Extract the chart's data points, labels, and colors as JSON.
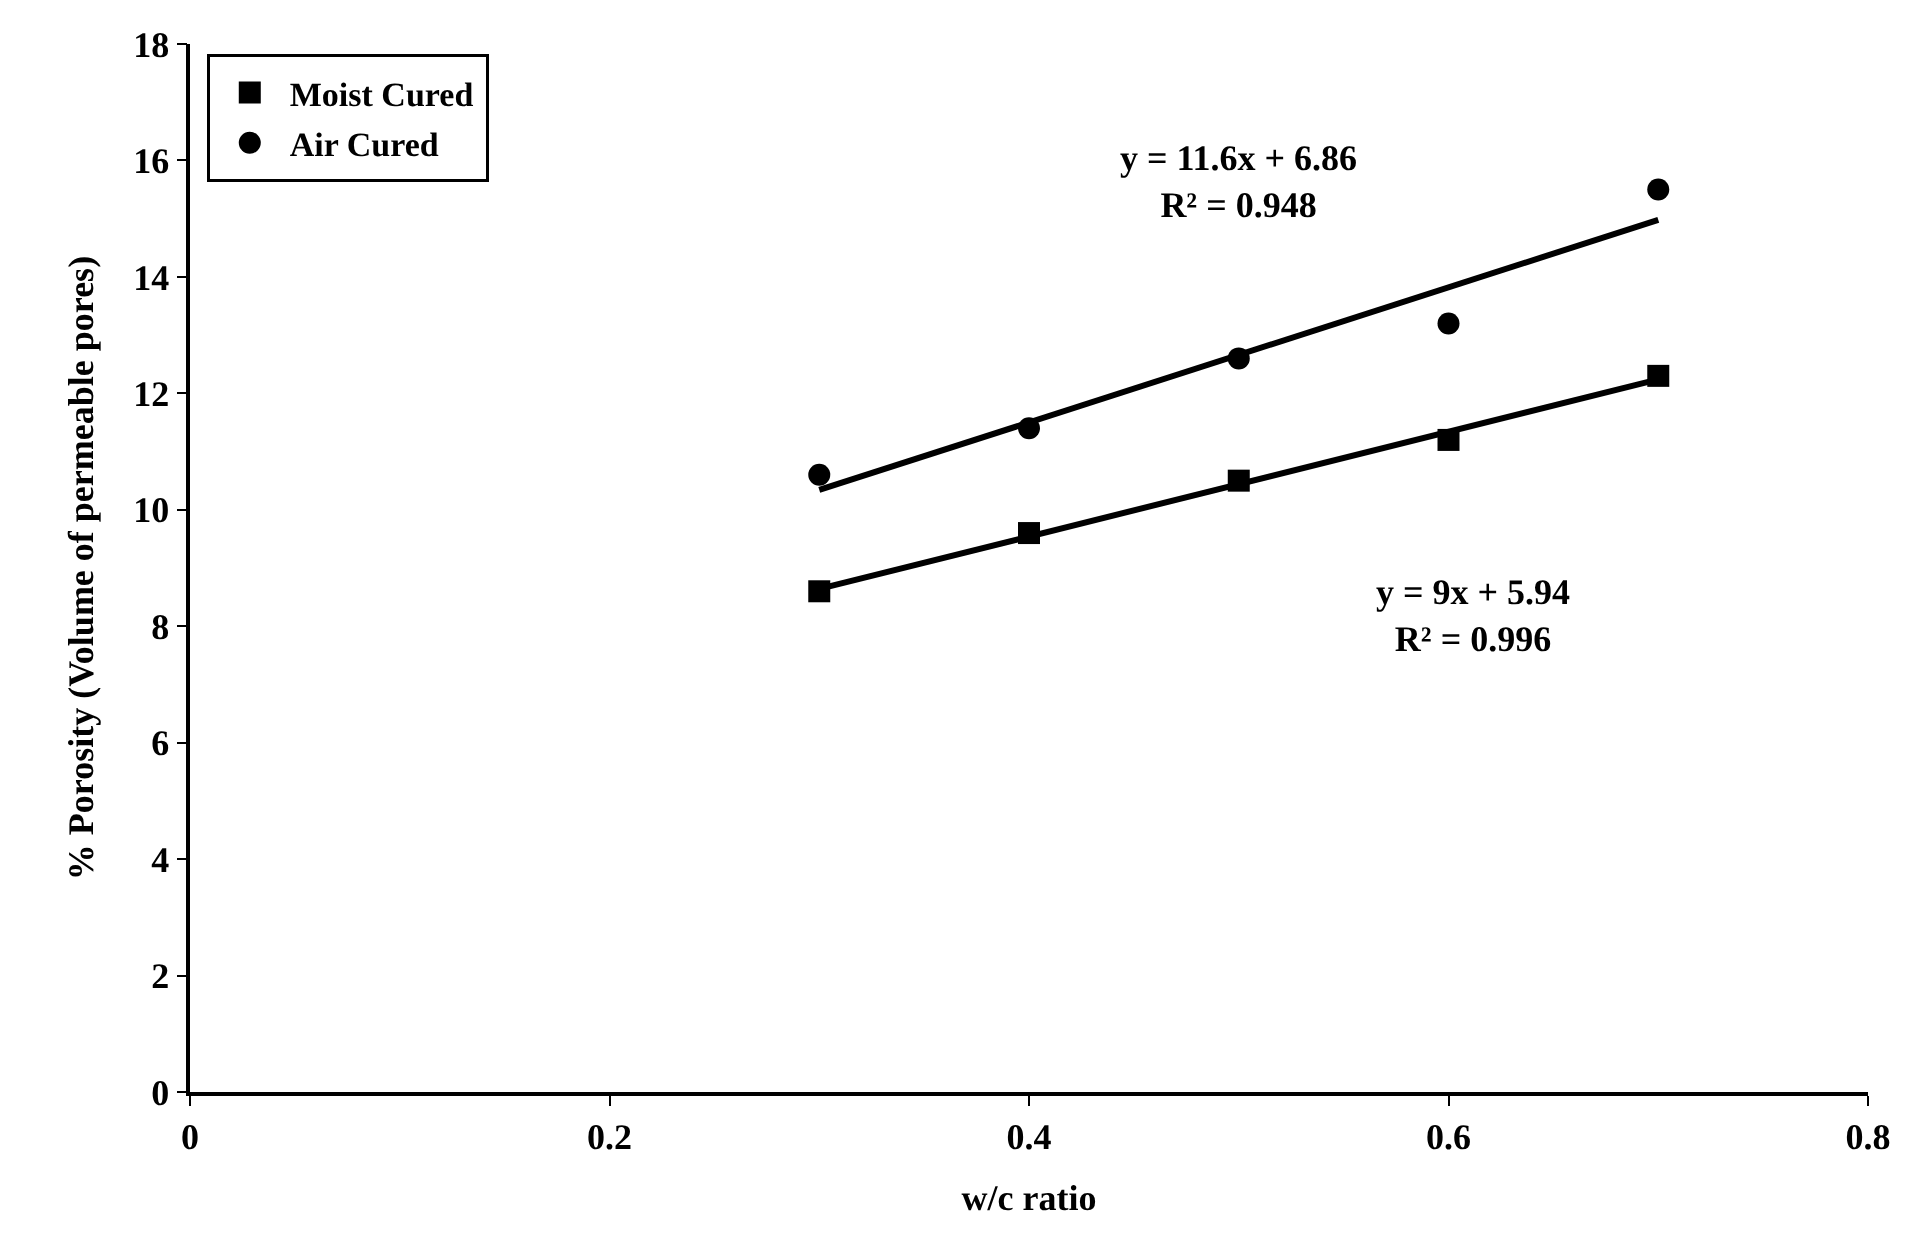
{
  "chart_data": {
    "type": "scatter",
    "xlabel": "w/c ratio",
    "ylabel": "% Porosity (Volume of permeable pores)",
    "xlim": [
      0,
      0.8
    ],
    "xticks": [
      0,
      0.2,
      0.4,
      0.6,
      0.8
    ],
    "ylim": [
      0,
      18
    ],
    "yticks": [
      0,
      2,
      4,
      6,
      8,
      10,
      12,
      14,
      16,
      18
    ],
    "legend": "top left",
    "series": [
      {
        "name": "Moist Cured",
        "color": "#000000",
        "marker": "square",
        "x": [
          0.3,
          0.4,
          0.5,
          0.6,
          0.7
        ],
        "values": [
          8.6,
          9.6,
          10.5,
          11.2,
          12.3
        ]
      },
      {
        "name": "Air Cured",
        "color": "#000000",
        "marker": "circle",
        "x": [
          0.3,
          0.4,
          0.5,
          0.6,
          0.7
        ],
        "values": [
          10.6,
          11.4,
          12.6,
          13.2,
          15.5
        ]
      },
      {
        "type": "line",
        "color": "#000000",
        "line_style": "solid",
        "x": [
          0.3,
          0.7
        ],
        "values": [
          8.64,
          12.24
        ]
      },
      {
        "type": "line",
        "color": "#000000",
        "line_style": "solid",
        "x": [
          0.3,
          0.7
        ],
        "values": [
          10.34,
          14.98
        ]
      }
    ],
    "annotations": [
      "y = 11.6x + 6.86\nR² = 0.948",
      "y = 9x + 5.94\nR² = 0.996"
    ]
  }
}
